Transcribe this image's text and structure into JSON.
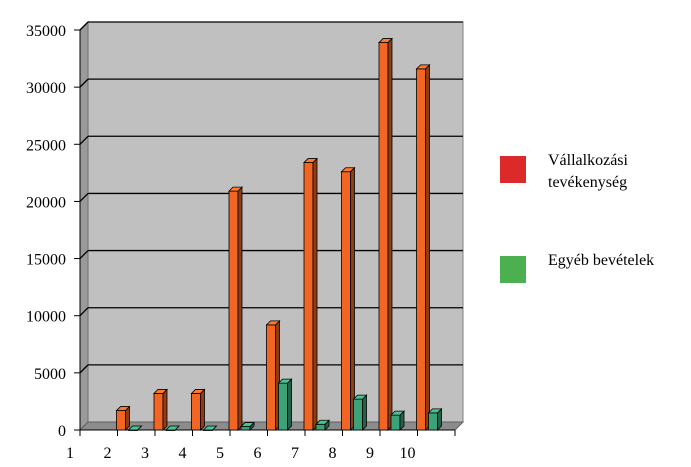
{
  "chart_data": {
    "type": "bar",
    "title": "",
    "xlabel": "",
    "ylabel": "",
    "categories": [
      "1",
      "2",
      "3",
      "4",
      "5",
      "6",
      "7",
      "8",
      "9",
      "10"
    ],
    "ylim": [
      0,
      35000
    ],
    "yticks": [
      0,
      5000,
      10000,
      15000,
      20000,
      25000,
      30000,
      35000
    ],
    "grid": true,
    "legend_position": "right",
    "series": [
      {
        "name": "Vállalkozási tevékenység",
        "color": "#dc2a2a",
        "bar_color": "#f26522",
        "values": [
          null,
          1700,
          3200,
          3200,
          20900,
          9200,
          23400,
          22600,
          33900,
          31600
        ]
      },
      {
        "name": "Egyéb bevételek",
        "color": "#4cb050",
        "bar_color": "#3aa37a",
        "values": [
          null,
          0,
          0,
          0,
          300,
          4100,
          500,
          2700,
          1300,
          1500
        ]
      }
    ]
  }
}
